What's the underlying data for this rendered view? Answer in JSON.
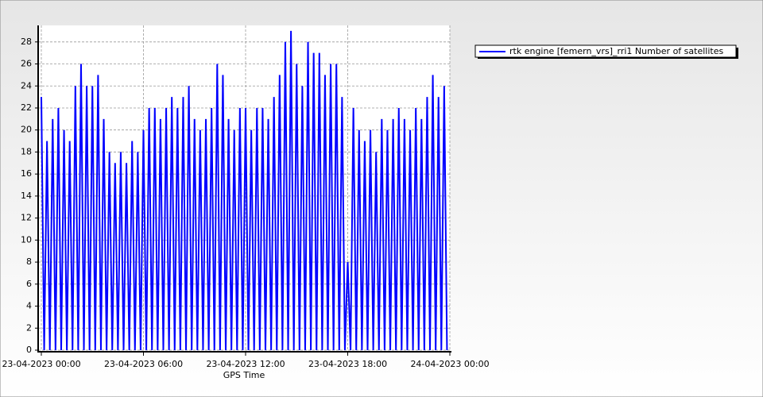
{
  "chart_data": {
    "type": "line",
    "xlabel": "GPS Time",
    "x": [
      "23-04-2023 00:00",
      "23-04-2023 00:10",
      "23-04-2023 00:20",
      "23-04-2023 00:30",
      "23-04-2023 00:40",
      "23-04-2023 00:50",
      "23-04-2023 01:00",
      "23-04-2023 01:10",
      "23-04-2023 01:20",
      "23-04-2023 01:30",
      "23-04-2023 01:40",
      "23-04-2023 01:50",
      "23-04-2023 02:00",
      "23-04-2023 02:10",
      "23-04-2023 02:20",
      "23-04-2023 02:30",
      "23-04-2023 02:40",
      "23-04-2023 02:50",
      "23-04-2023 03:00",
      "23-04-2023 03:10",
      "23-04-2023 03:20",
      "23-04-2023 03:30",
      "23-04-2023 03:40",
      "23-04-2023 03:50",
      "23-04-2023 04:00",
      "23-04-2023 04:10",
      "23-04-2023 04:20",
      "23-04-2023 04:30",
      "23-04-2023 04:40",
      "23-04-2023 04:50",
      "23-04-2023 05:00",
      "23-04-2023 05:10",
      "23-04-2023 05:20",
      "23-04-2023 05:30",
      "23-04-2023 05:40",
      "23-04-2023 05:50",
      "23-04-2023 06:00",
      "23-04-2023 06:10",
      "23-04-2023 06:20",
      "23-04-2023 06:30",
      "23-04-2023 06:40",
      "23-04-2023 06:50",
      "23-04-2023 07:00",
      "23-04-2023 07:10",
      "23-04-2023 07:20",
      "23-04-2023 07:30",
      "23-04-2023 07:40",
      "23-04-2023 07:50",
      "23-04-2023 08:00",
      "23-04-2023 08:10",
      "23-04-2023 08:20",
      "23-04-2023 08:30",
      "23-04-2023 08:40",
      "23-04-2023 08:50",
      "23-04-2023 09:00",
      "23-04-2023 09:10",
      "23-04-2023 09:20",
      "23-04-2023 09:30",
      "23-04-2023 09:40",
      "23-04-2023 09:50",
      "23-04-2023 10:00",
      "23-04-2023 10:10",
      "23-04-2023 10:20",
      "23-04-2023 10:30",
      "23-04-2023 10:40",
      "23-04-2023 10:50",
      "23-04-2023 11:00",
      "23-04-2023 11:10",
      "23-04-2023 11:20",
      "23-04-2023 11:30",
      "23-04-2023 11:40",
      "23-04-2023 11:50",
      "23-04-2023 12:00",
      "23-04-2023 12:10",
      "23-04-2023 12:20",
      "23-04-2023 12:30",
      "23-04-2023 12:40",
      "23-04-2023 12:50",
      "23-04-2023 13:00",
      "23-04-2023 13:10",
      "23-04-2023 13:20",
      "23-04-2023 13:30",
      "23-04-2023 13:40",
      "23-04-2023 13:50",
      "23-04-2023 14:00",
      "23-04-2023 14:10",
      "23-04-2023 14:20",
      "23-04-2023 14:30",
      "23-04-2023 14:40",
      "23-04-2023 14:50",
      "23-04-2023 15:00",
      "23-04-2023 15:10",
      "23-04-2023 15:20",
      "23-04-2023 15:30",
      "23-04-2023 15:40",
      "23-04-2023 15:50",
      "23-04-2023 16:00",
      "23-04-2023 16:10",
      "23-04-2023 16:20",
      "23-04-2023 16:30",
      "23-04-2023 16:40",
      "23-04-2023 16:50",
      "23-04-2023 17:00",
      "23-04-2023 17:10",
      "23-04-2023 17:20",
      "23-04-2023 17:30",
      "23-04-2023 17:40",
      "23-04-2023 17:50",
      "23-04-2023 18:00",
      "23-04-2023 18:10",
      "23-04-2023 18:20",
      "23-04-2023 18:30",
      "23-04-2023 18:40",
      "23-04-2023 18:50",
      "23-04-2023 19:00",
      "23-04-2023 19:10",
      "23-04-2023 19:20",
      "23-04-2023 19:30",
      "23-04-2023 19:40",
      "23-04-2023 19:50",
      "23-04-2023 20:00",
      "23-04-2023 20:10",
      "23-04-2023 20:20",
      "23-04-2023 20:30",
      "23-04-2023 20:40",
      "23-04-2023 20:50",
      "23-04-2023 21:00",
      "23-04-2023 21:10",
      "23-04-2023 21:20",
      "23-04-2023 21:30",
      "23-04-2023 21:40",
      "23-04-2023 21:50",
      "23-04-2023 22:00",
      "23-04-2023 22:10",
      "23-04-2023 22:20",
      "23-04-2023 22:30",
      "23-04-2023 22:40",
      "23-04-2023 22:50",
      "23-04-2023 23:00",
      "23-04-2023 23:10",
      "23-04-2023 23:20",
      "23-04-2023 23:30",
      "23-04-2023 23:40",
      "23-04-2023 23:50"
    ],
    "series": [
      {
        "name": "rtk engine [femern_vrs]_rri1 Number of satellites",
        "color": "#0000ff",
        "values": [
          23,
          0,
          19,
          0,
          21,
          0,
          22,
          0,
          20,
          0,
          19,
          0,
          24,
          0,
          26,
          0,
          24,
          0,
          24,
          0,
          25,
          0,
          21,
          0,
          18,
          0,
          17,
          0,
          18,
          0,
          17,
          0,
          19,
          0,
          18,
          0,
          20,
          0,
          22,
          0,
          22,
          0,
          21,
          0,
          22,
          0,
          23,
          0,
          22,
          0,
          23,
          0,
          24,
          0,
          21,
          0,
          20,
          0,
          21,
          0,
          22,
          0,
          26,
          0,
          25,
          0,
          21,
          0,
          20,
          0,
          22,
          0,
          22,
          0,
          20,
          0,
          22,
          0,
          22,
          0,
          21,
          0,
          23,
          0,
          25,
          0,
          28,
          0,
          29,
          0,
          26,
          0,
          24,
          0,
          28,
          0,
          27,
          0,
          27,
          0,
          25,
          0,
          26,
          0,
          26,
          0,
          23,
          0,
          8,
          0,
          22,
          0,
          20,
          0,
          19,
          0,
          20,
          0,
          18,
          0,
          21,
          0,
          20,
          0,
          21,
          0,
          22,
          0,
          21,
          0,
          20,
          0,
          22,
          0,
          21,
          0,
          23,
          0,
          25,
          0,
          23,
          0,
          24,
          0
        ]
      }
    ],
    "xlim": [
      "23-04-2023 00:00",
      "24-04-2023 00:00"
    ],
    "xticks": [
      "23-04-2023 00:00",
      "23-04-2023 06:00",
      "23-04-2023 12:00",
      "23-04-2023 18:00",
      "24-04-2023 00:00"
    ],
    "ylim": [
      0,
      29.5
    ],
    "yticks": [
      0,
      2,
      4,
      6,
      8,
      10,
      12,
      14,
      16,
      18,
      20,
      22,
      24,
      26,
      28
    ],
    "grid": true,
    "legend": "right"
  }
}
